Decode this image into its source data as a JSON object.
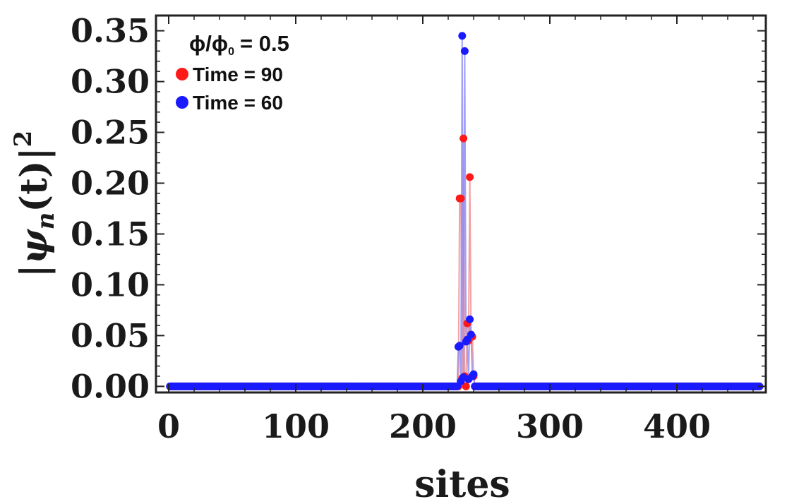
{
  "chart_data": {
    "type": "scatter",
    "title": "",
    "xlabel": "sites",
    "ylabel_parts": {
      "psi": "ψ",
      "sub": "n",
      "arg": "(t)",
      "sup": "2"
    },
    "xlim": [
      -10,
      470
    ],
    "ylim": [
      -0.006,
      0.365
    ],
    "x_ticks": [
      0,
      100,
      200,
      300,
      400
    ],
    "x_tick_labels": [
      "0",
      "100",
      "200",
      "300",
      "400"
    ],
    "y_ticks": [
      0,
      0.05,
      0.1,
      0.15,
      0.2,
      0.25,
      0.3,
      0.35
    ],
    "y_tick_labels": [
      "0.00",
      "0.05",
      "0.10",
      "0.15",
      "0.20",
      "0.25",
      "0.30",
      "0.35"
    ],
    "grid": false,
    "legend_placement": "top-left",
    "legend_header": {
      "phi": "ϕ",
      "sub": "0",
      "value": "= 0.5"
    },
    "site_range": [
      1,
      465
    ],
    "series": [
      {
        "name": "Time = 90",
        "color": "#ff1a1a",
        "line_color": "#f08a8a",
        "nonzero_points": [
          [
            229,
            0.185
          ],
          [
            230,
            0.185
          ],
          [
            231,
            0.008
          ],
          [
            232,
            0.244
          ],
          [
            233,
            0.01
          ],
          [
            234,
            0.0
          ],
          [
            235,
            0.062
          ],
          [
            236,
            0.045
          ],
          [
            237,
            0.206
          ],
          [
            238,
            0.05
          ],
          [
            239,
            0.049
          ],
          [
            240,
            0.01
          ]
        ]
      },
      {
        "name": "Time = 60",
        "color": "#1a1aff",
        "line_color": "#8a8af5",
        "nonzero_points": [
          [
            228,
            0.039
          ],
          [
            229,
            0.04
          ],
          [
            230,
            0.005
          ],
          [
            231,
            0.345
          ],
          [
            232,
            0.009
          ],
          [
            233,
            0.33
          ],
          [
            234,
            0.044
          ],
          [
            235,
            0.046
          ],
          [
            236,
            0.007
          ],
          [
            237,
            0.066
          ],
          [
            238,
            0.051
          ],
          [
            239,
            0.01
          ],
          [
            240,
            0.012
          ]
        ]
      }
    ]
  }
}
